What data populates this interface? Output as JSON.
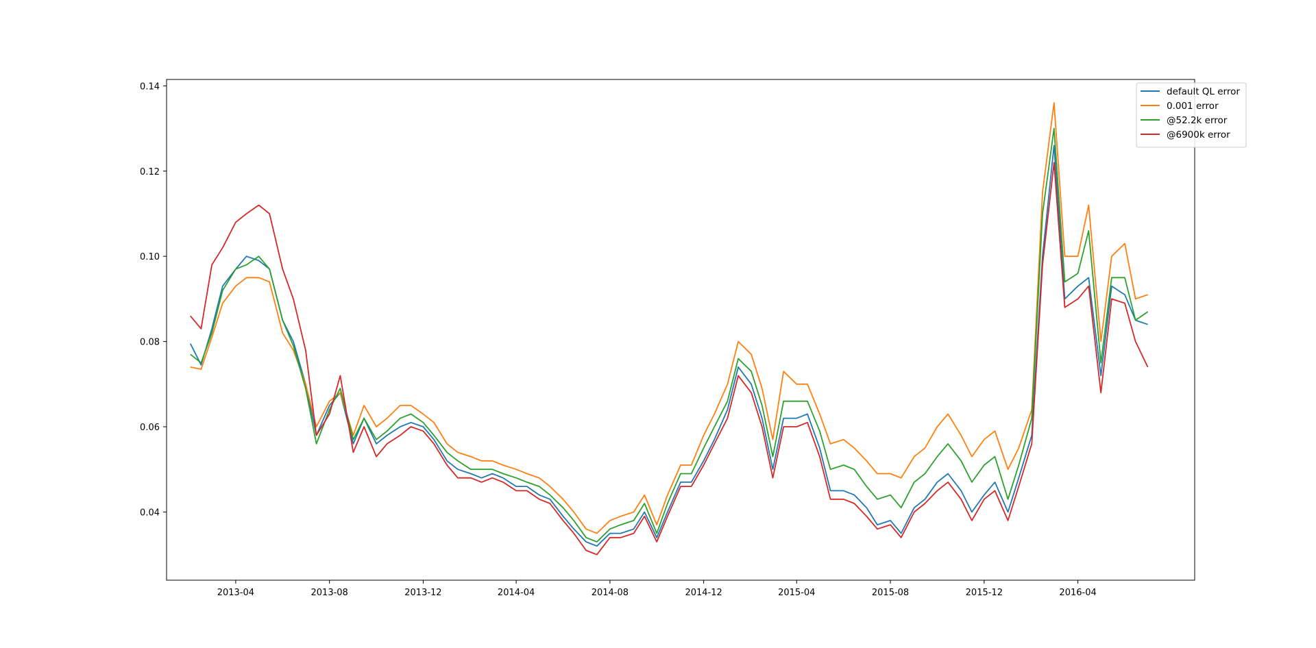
{
  "chart_data": {
    "type": "line",
    "title": "",
    "xlabel": "",
    "ylabel": "",
    "xlim": [
      "2013-01-01",
      "2016-08-31"
    ],
    "ylim": [
      0.024,
      0.1415
    ],
    "grid": false,
    "legend_position": "top-right",
    "x_ticks": [
      "2013-04",
      "2013-08",
      "2013-12",
      "2014-04",
      "2014-08",
      "2014-12",
      "2015-04",
      "2015-08",
      "2015-12",
      "2016-04"
    ],
    "y_ticks": [
      "0.04",
      "0.06",
      "0.08",
      "0.10",
      "0.12",
      "0.14"
    ],
    "x": [
      "2013-02-01",
      "2013-02-15",
      "2013-03-01",
      "2013-03-15",
      "2013-04-01",
      "2013-04-15",
      "2013-05-01",
      "2013-05-15",
      "2013-06-01",
      "2013-06-15",
      "2013-07-01",
      "2013-07-15",
      "2013-08-01",
      "2013-08-15",
      "2013-09-01",
      "2013-09-15",
      "2013-10-01",
      "2013-10-15",
      "2013-11-01",
      "2013-11-15",
      "2013-12-01",
      "2013-12-15",
      "2014-01-01",
      "2014-01-15",
      "2014-02-01",
      "2014-02-15",
      "2014-03-01",
      "2014-03-15",
      "2014-04-01",
      "2014-04-15",
      "2014-05-01",
      "2014-05-15",
      "2014-06-01",
      "2014-06-15",
      "2014-07-01",
      "2014-07-15",
      "2014-08-01",
      "2014-08-15",
      "2014-09-01",
      "2014-09-15",
      "2014-10-01",
      "2014-10-15",
      "2014-11-01",
      "2014-11-15",
      "2014-12-01",
      "2014-12-15",
      "2015-01-01",
      "2015-01-15",
      "2015-02-01",
      "2015-02-15",
      "2015-03-01",
      "2015-03-15",
      "2015-04-01",
      "2015-04-15",
      "2015-05-01",
      "2015-05-15",
      "2015-06-01",
      "2015-06-15",
      "2015-07-01",
      "2015-07-15",
      "2015-08-01",
      "2015-08-15",
      "2015-09-01",
      "2015-09-15",
      "2015-10-01",
      "2015-10-15",
      "2015-11-01",
      "2015-11-15",
      "2015-12-01",
      "2015-12-15",
      "2016-01-01",
      "2016-01-15",
      "2016-02-01",
      "2016-02-15",
      "2016-03-01",
      "2016-03-15",
      "2016-04-01",
      "2016-04-15",
      "2016-05-01",
      "2016-05-15",
      "2016-06-01",
      "2016-06-15",
      "2016-07-01"
    ],
    "series": [
      {
        "name": "default QL error",
        "color": "#1f77b4",
        "values": [
          0.0795,
          0.0745,
          0.083,
          0.093,
          0.097,
          0.1,
          0.099,
          0.097,
          0.085,
          0.08,
          0.07,
          0.058,
          0.065,
          0.068,
          0.056,
          0.062,
          0.056,
          0.058,
          0.06,
          0.061,
          0.06,
          0.057,
          0.052,
          0.05,
          0.049,
          0.048,
          0.049,
          0.048,
          0.046,
          0.046,
          0.044,
          0.043,
          0.039,
          0.036,
          0.033,
          0.032,
          0.035,
          0.035,
          0.036,
          0.04,
          0.034,
          0.04,
          0.047,
          0.047,
          0.052,
          0.057,
          0.064,
          0.074,
          0.07,
          0.062,
          0.05,
          0.062,
          0.062,
          0.063,
          0.055,
          0.045,
          0.045,
          0.044,
          0.041,
          0.037,
          0.038,
          0.035,
          0.041,
          0.043,
          0.047,
          0.049,
          0.045,
          0.04,
          0.044,
          0.047,
          0.04,
          0.048,
          0.058,
          0.1,
          0.126,
          0.09,
          0.093,
          0.095,
          0.072,
          0.093,
          0.091,
          0.085,
          0.084
        ]
      },
      {
        "name": "0.001 error",
        "color": "#ff7f0e",
        "values": [
          0.074,
          0.0735,
          0.081,
          0.089,
          0.093,
          0.095,
          0.095,
          0.094,
          0.082,
          0.078,
          0.07,
          0.06,
          0.066,
          0.068,
          0.058,
          0.065,
          0.06,
          0.062,
          0.065,
          0.065,
          0.063,
          0.061,
          0.056,
          0.054,
          0.053,
          0.052,
          0.052,
          0.051,
          0.05,
          0.049,
          0.048,
          0.046,
          0.043,
          0.04,
          0.036,
          0.035,
          0.038,
          0.039,
          0.04,
          0.044,
          0.037,
          0.044,
          0.051,
          0.051,
          0.058,
          0.063,
          0.07,
          0.08,
          0.077,
          0.069,
          0.057,
          0.073,
          0.07,
          0.07,
          0.063,
          0.056,
          0.057,
          0.055,
          0.052,
          0.049,
          0.049,
          0.048,
          0.053,
          0.055,
          0.06,
          0.063,
          0.058,
          0.053,
          0.057,
          0.059,
          0.05,
          0.055,
          0.064,
          0.115,
          0.136,
          0.1,
          0.1,
          0.112,
          0.08,
          0.1,
          0.103,
          0.09,
          0.091
        ]
      },
      {
        "name": "@52.2k error",
        "color": "#2ca02c",
        "values": [
          0.077,
          0.075,
          0.082,
          0.092,
          0.097,
          0.098,
          0.1,
          0.097,
          0.085,
          0.079,
          0.069,
          0.056,
          0.064,
          0.069,
          0.057,
          0.062,
          0.057,
          0.059,
          0.062,
          0.063,
          0.061,
          0.058,
          0.054,
          0.052,
          0.05,
          0.05,
          0.05,
          0.049,
          0.048,
          0.047,
          0.046,
          0.044,
          0.041,
          0.038,
          0.034,
          0.033,
          0.036,
          0.037,
          0.038,
          0.042,
          0.035,
          0.042,
          0.049,
          0.049,
          0.055,
          0.06,
          0.066,
          0.076,
          0.073,
          0.065,
          0.053,
          0.066,
          0.066,
          0.066,
          0.059,
          0.05,
          0.051,
          0.05,
          0.046,
          0.043,
          0.044,
          0.041,
          0.047,
          0.049,
          0.053,
          0.056,
          0.052,
          0.047,
          0.051,
          0.053,
          0.043,
          0.051,
          0.062,
          0.11,
          0.13,
          0.094,
          0.096,
          0.106,
          0.075,
          0.095,
          0.095,
          0.085,
          0.087
        ]
      },
      {
        "name": "@6900k error",
        "color": "#d62728",
        "values": [
          0.086,
          0.083,
          0.098,
          0.102,
          0.108,
          0.11,
          0.112,
          0.11,
          0.097,
          0.09,
          0.078,
          0.058,
          0.063,
          0.072,
          0.054,
          0.06,
          0.053,
          0.056,
          0.058,
          0.06,
          0.059,
          0.056,
          0.051,
          0.048,
          0.048,
          0.047,
          0.048,
          0.047,
          0.045,
          0.045,
          0.043,
          0.042,
          0.038,
          0.035,
          0.031,
          0.03,
          0.034,
          0.034,
          0.035,
          0.039,
          0.033,
          0.039,
          0.046,
          0.046,
          0.051,
          0.056,
          0.062,
          0.072,
          0.068,
          0.06,
          0.048,
          0.06,
          0.06,
          0.061,
          0.053,
          0.043,
          0.043,
          0.042,
          0.039,
          0.036,
          0.037,
          0.034,
          0.04,
          0.042,
          0.045,
          0.047,
          0.043,
          0.038,
          0.043,
          0.045,
          0.038,
          0.046,
          0.056,
          0.098,
          0.122,
          0.088,
          0.09,
          0.093,
          0.068,
          0.09,
          0.089,
          0.08,
          0.074
        ]
      }
    ]
  }
}
